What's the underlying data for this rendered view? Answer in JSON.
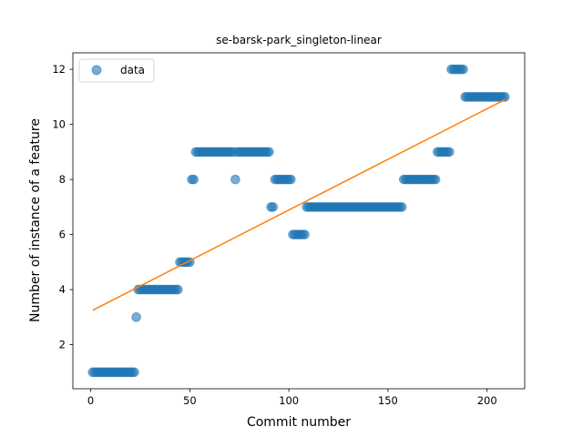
{
  "chart_data": {
    "type": "scatter",
    "title": "se-barsk-park_singleton-linear",
    "xlabel": "Commit number",
    "ylabel": "Number of instance of a feature",
    "xlim": [
      -9,
      219
    ],
    "ylim": [
      0.4,
      12.6
    ],
    "xticks": [
      0,
      50,
      100,
      150,
      200
    ],
    "yticks": [
      2,
      4,
      6,
      8,
      10,
      12
    ],
    "legend": {
      "placement": "upper-left",
      "entries": [
        "data"
      ]
    },
    "colors": {
      "points": "#1f77b4",
      "fit": "#ff7f0e"
    },
    "series": [
      {
        "name": "data",
        "kind": "scatter",
        "segments": [
          {
            "x_start": 1,
            "x_end": 22,
            "y": 1
          },
          {
            "x_start": 23,
            "x_end": 23,
            "y": 3
          },
          {
            "x_start": 24,
            "x_end": 44,
            "y": 4
          },
          {
            "x_start": 45,
            "x_end": 50,
            "y": 5
          },
          {
            "x_start": 51,
            "x_end": 52,
            "y": 8
          },
          {
            "x_start": 53,
            "x_end": 72,
            "y": 9
          },
          {
            "x_start": 73,
            "x_end": 73,
            "y": 8
          },
          {
            "x_start": 74,
            "x_end": 90,
            "y": 9
          },
          {
            "x_start": 91,
            "x_end": 92,
            "y": 7
          },
          {
            "x_start": 93,
            "x_end": 101,
            "y": 8
          },
          {
            "x_start": 102,
            "x_end": 108,
            "y": 6
          },
          {
            "x_start": 109,
            "x_end": 157,
            "y": 7
          },
          {
            "x_start": 158,
            "x_end": 174,
            "y": 8
          },
          {
            "x_start": 175,
            "x_end": 181,
            "y": 9
          },
          {
            "x_start": 182,
            "x_end": 188,
            "y": 12
          },
          {
            "x_start": 189,
            "x_end": 209,
            "y": 11
          }
        ]
      },
      {
        "name": "",
        "kind": "line",
        "x": [
          1,
          209
        ],
        "y": [
          3.25,
          10.9
        ]
      }
    ]
  }
}
